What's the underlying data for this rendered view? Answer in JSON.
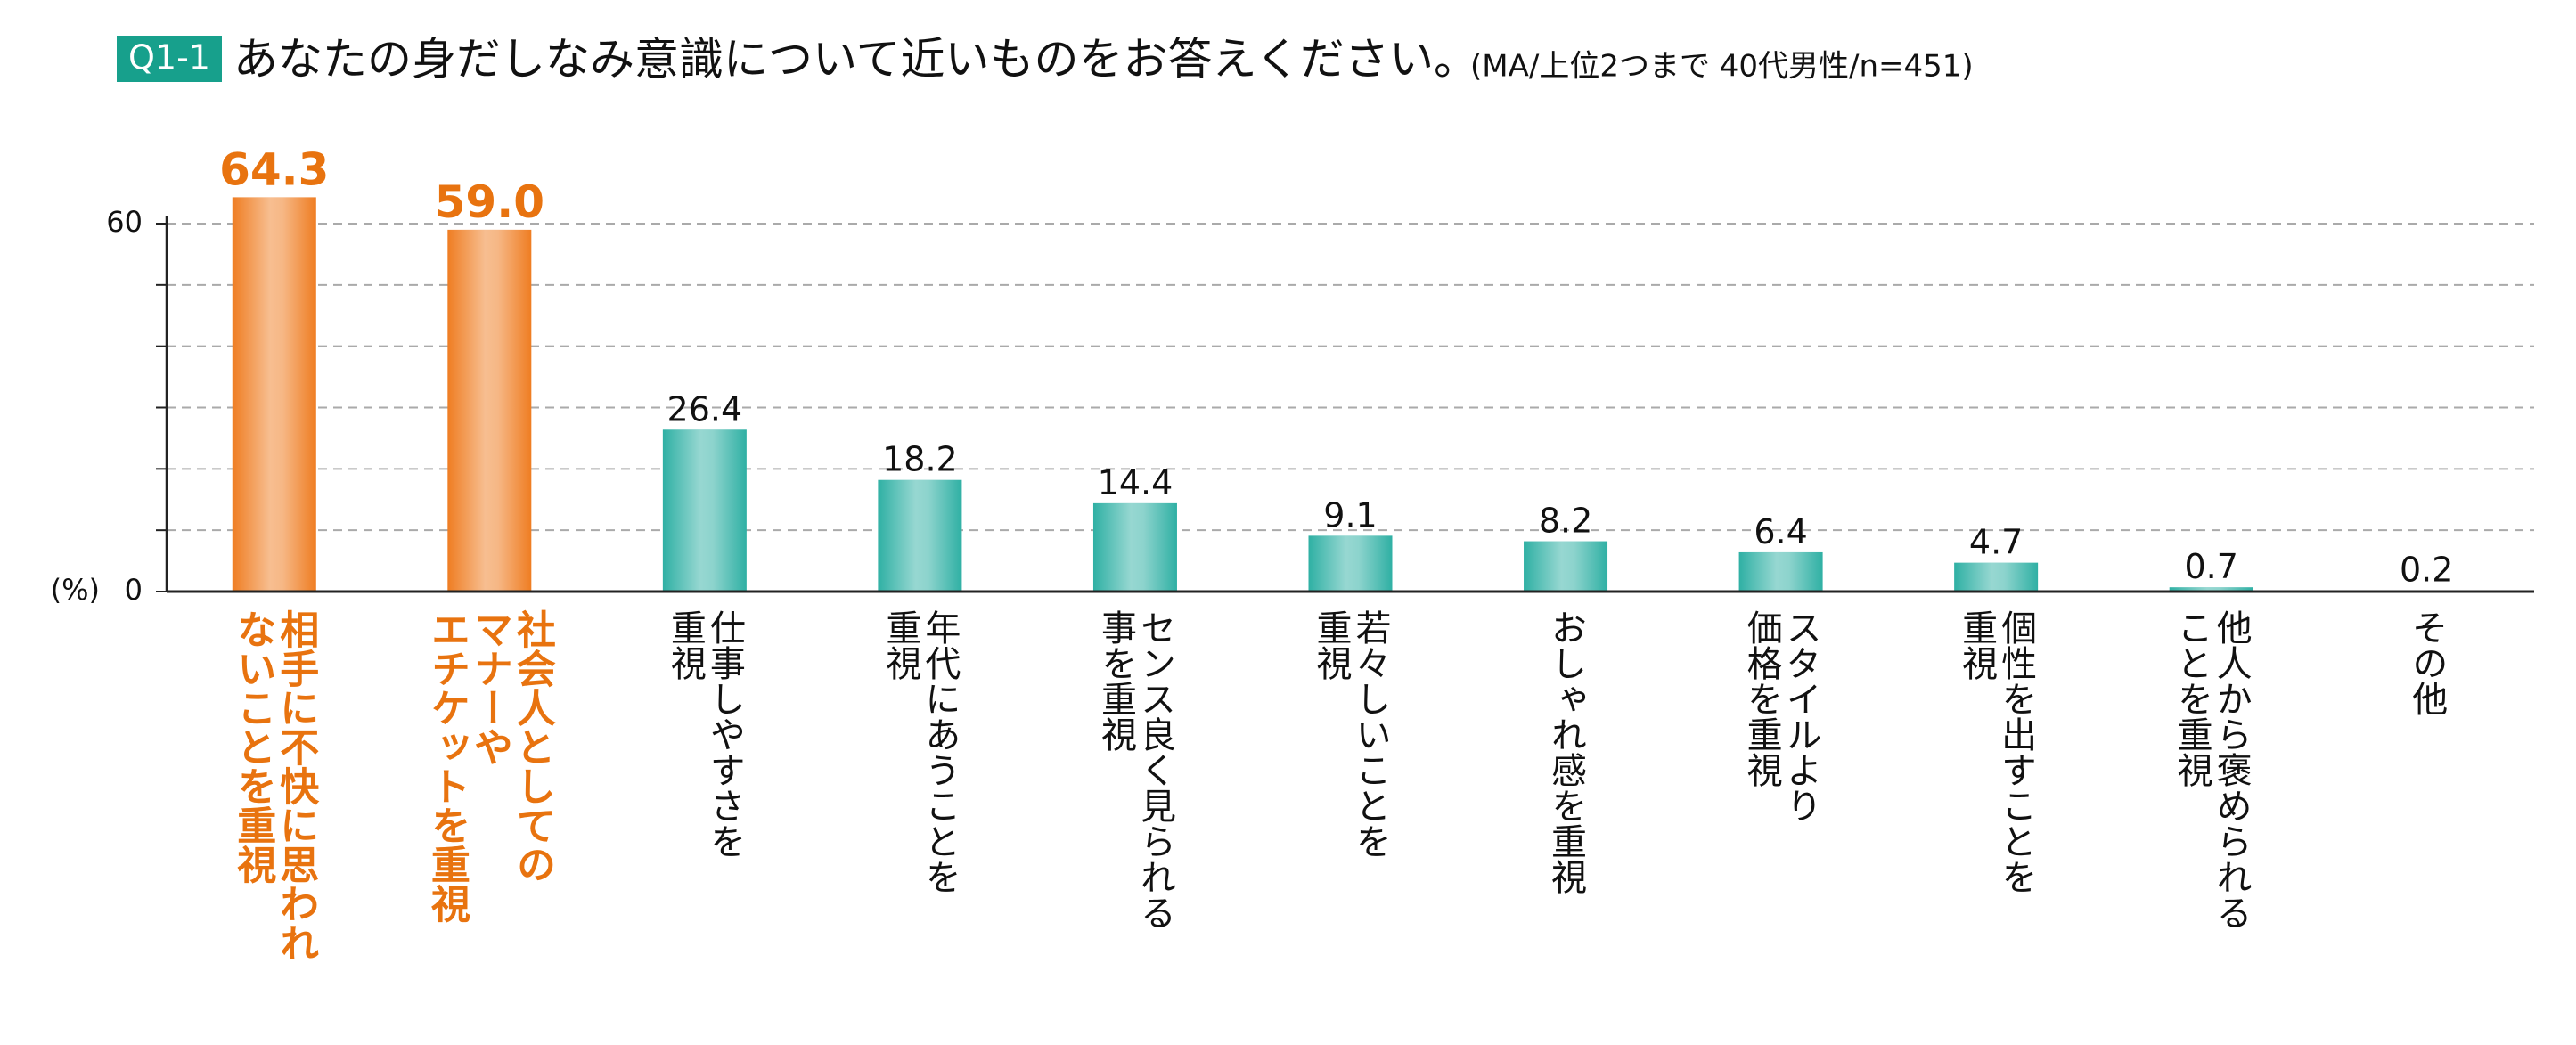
{
  "chart_data": {
    "type": "bar",
    "badge": "Q1-1",
    "title": "あなたの身だしなみ意識について近いものをお答えください。",
    "subtitle": "(MA/上位2つまで 40代男性/n=451)",
    "y_label": "(%)",
    "categories": [
      [
        "相手に不快に思われ",
        "ないことを重視"
      ],
      [
        "社会人としての",
        "マナーや",
        "エチケットを重視"
      ],
      [
        "仕事しやすさを",
        "重視"
      ],
      [
        "年代にあうことを",
        "重視"
      ],
      [
        "センス良く見られる",
        "事を重視"
      ],
      [
        "若々しいことを",
        "重視"
      ],
      [
        "おしゃれ感を重視"
      ],
      [
        "スタイルより",
        "価格を重視"
      ],
      [
        "個性を出すことを",
        "重視"
      ],
      [
        "他人から褒められる",
        "ことを重視"
      ],
      [
        "その他"
      ]
    ],
    "values": [
      64.3,
      59.0,
      26.4,
      18.2,
      14.4,
      9.1,
      8.2,
      6.4,
      4.7,
      0.7,
      0.2
    ],
    "value_labels": [
      "64.3",
      "59.0",
      "26.4",
      "18.2",
      "14.4",
      "9.1",
      "8.2",
      "6.4",
      "4.7",
      "0.7",
      "0.2"
    ],
    "colors": [
      "#ef7d22",
      "#ef7d22",
      "#2fb0a4",
      "#2fb0a4",
      "#2fb0a4",
      "#2fb0a4",
      "#2fb0a4",
      "#2fb0a4",
      "#2fb0a4",
      "#2fb0a4",
      "#2fb0a4"
    ],
    "label_colors": [
      "#e8730f",
      "#e8730f",
      "#111111",
      "#111111",
      "#111111",
      "#111111",
      "#111111",
      "#111111",
      "#111111",
      "#111111",
      "#111111"
    ],
    "ylim": [
      0,
      60
    ],
    "yticks": [
      0,
      {
        "value": 10,
        "label": null
      },
      {
        "value": 20,
        "label": null
      },
      {
        "value": 30,
        "label": null
      },
      {
        "value": 40,
        "label": null
      },
      {
        "value": 50,
        "label": null
      },
      60
    ],
    "grid": true
  }
}
